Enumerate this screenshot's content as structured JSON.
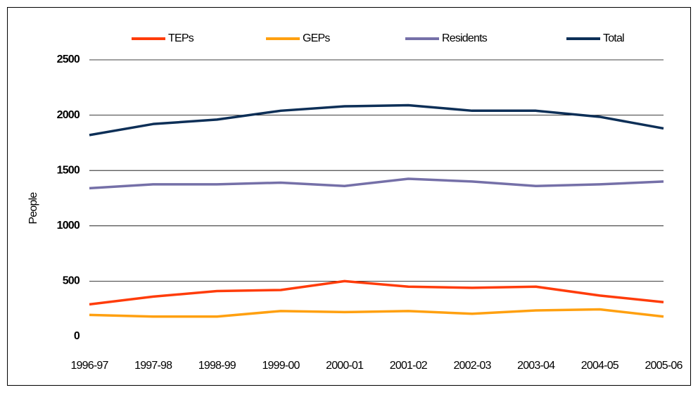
{
  "chart_data": {
    "type": "line",
    "y_label": "People",
    "categories": [
      "1996-97",
      "1997-98",
      "1998-99",
      "1999-00",
      "2000-01",
      "2001-02",
      "2002-03",
      "2003-04",
      "2004-05",
      "2005-06"
    ],
    "series": [
      {
        "name": "TEPs",
        "color": "#ff3c0a",
        "values": [
          290,
          360,
          410,
          420,
          500,
          450,
          440,
          450,
          370,
          310
        ]
      },
      {
        "name": "GEPs",
        "color": "#ffa010",
        "values": [
          195,
          180,
          180,
          230,
          220,
          230,
          205,
          235,
          245,
          180
        ]
      },
      {
        "name": "Residents",
        "color": "#7570a8",
        "values": [
          1340,
          1375,
          1375,
          1390,
          1360,
          1425,
          1400,
          1360,
          1375,
          1400
        ]
      },
      {
        "name": "Total",
        "color": "#0d2f57",
        "values": [
          1820,
          1920,
          1960,
          2040,
          2080,
          2090,
          2040,
          2040,
          1985,
          1880
        ]
      }
    ],
    "ylim": [
      0,
      2500
    ],
    "yticks": [
      0,
      500,
      1000,
      1500,
      2000,
      2500
    ],
    "grid": true,
    "legend": "top"
  }
}
